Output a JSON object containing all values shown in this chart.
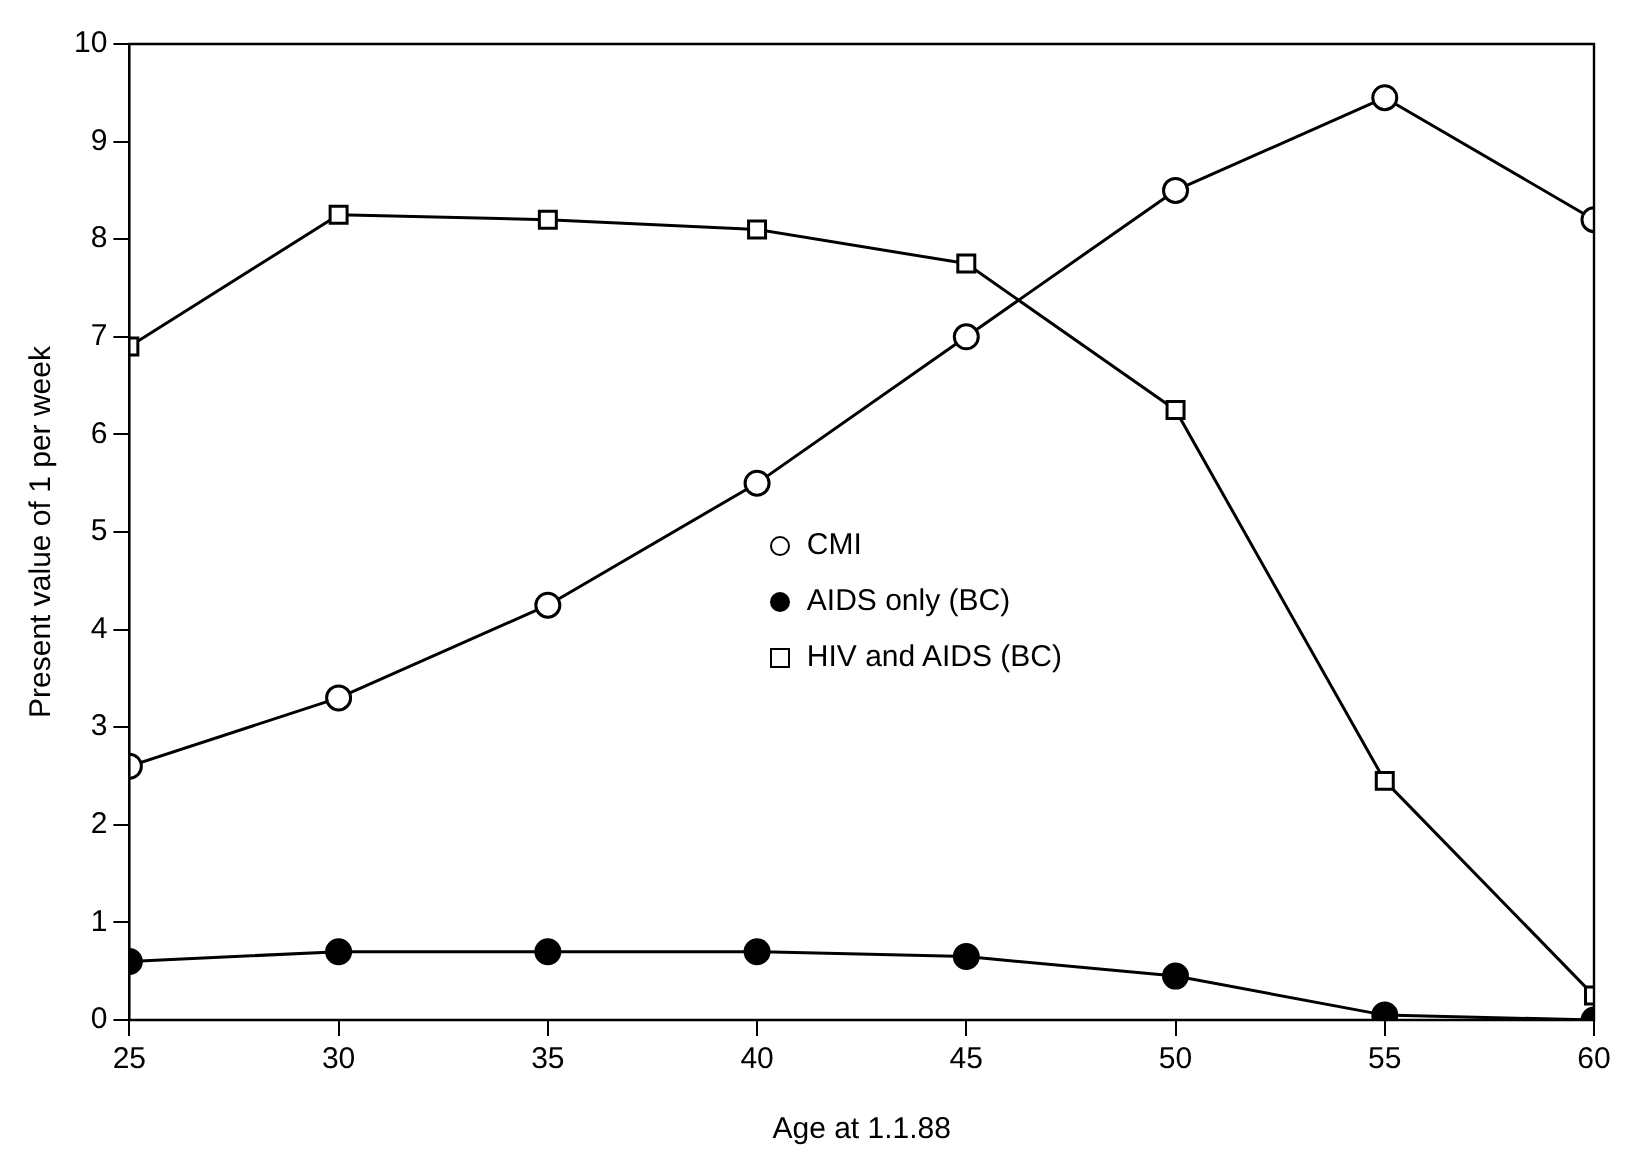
{
  "chart_data": {
    "type": "line",
    "xlabel": "Age at 1.1.88",
    "ylabel": "Present value of 1 per week",
    "x": [
      25,
      30,
      35,
      40,
      45,
      50,
      55,
      60
    ],
    "series": [
      {
        "name": "CMI",
        "color": "#000000",
        "marker": "circle",
        "values": [
          2.6,
          3.3,
          4.25,
          5.5,
          7.0,
          8.5,
          9.45,
          8.2
        ]
      },
      {
        "name": "AIDS only (BC)",
        "color": "#000000",
        "marker": "circle",
        "values": [
          0.6,
          0.7,
          0.7,
          0.7,
          0.65,
          0.45,
          0.05,
          0
        ]
      },
      {
        "name": "HIV and AIDS (BC)",
        "color": "#000000",
        "marker": "square",
        "values": [
          6.9,
          8.25,
          8.2,
          8.1,
          7.75,
          6.25,
          2.45,
          0.25
        ]
      }
    ],
    "xlim": [
      25,
      60
    ],
    "xticks": [
      25,
      30,
      35,
      40,
      45,
      50,
      55,
      60
    ],
    "ylim": [
      0,
      10
    ],
    "yticks": [
      0,
      1,
      2,
      3,
      4,
      5,
      6,
      7,
      8,
      9,
      10
    ],
    "grid": false,
    "legend": "center",
    "line_style": "solid"
  }
}
